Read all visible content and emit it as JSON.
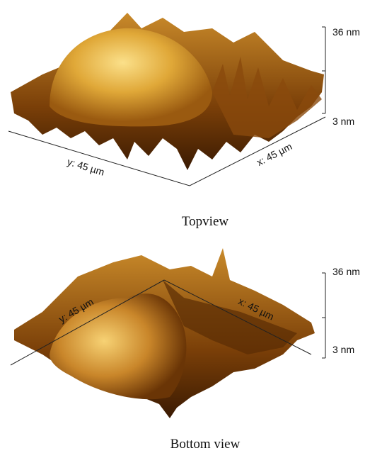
{
  "panels": [
    {
      "z_max_label": "36 nm",
      "z_min_label": "3 nm",
      "y_label": "y: 45 µm",
      "x_label": "x: 45 µm",
      "caption": "Topview"
    },
    {
      "z_max_label": "36 nm",
      "z_min_label": "3 nm",
      "y_label": "y: 45 µm",
      "x_label": "x: 45 µm",
      "caption": "Bottom view"
    }
  ]
}
